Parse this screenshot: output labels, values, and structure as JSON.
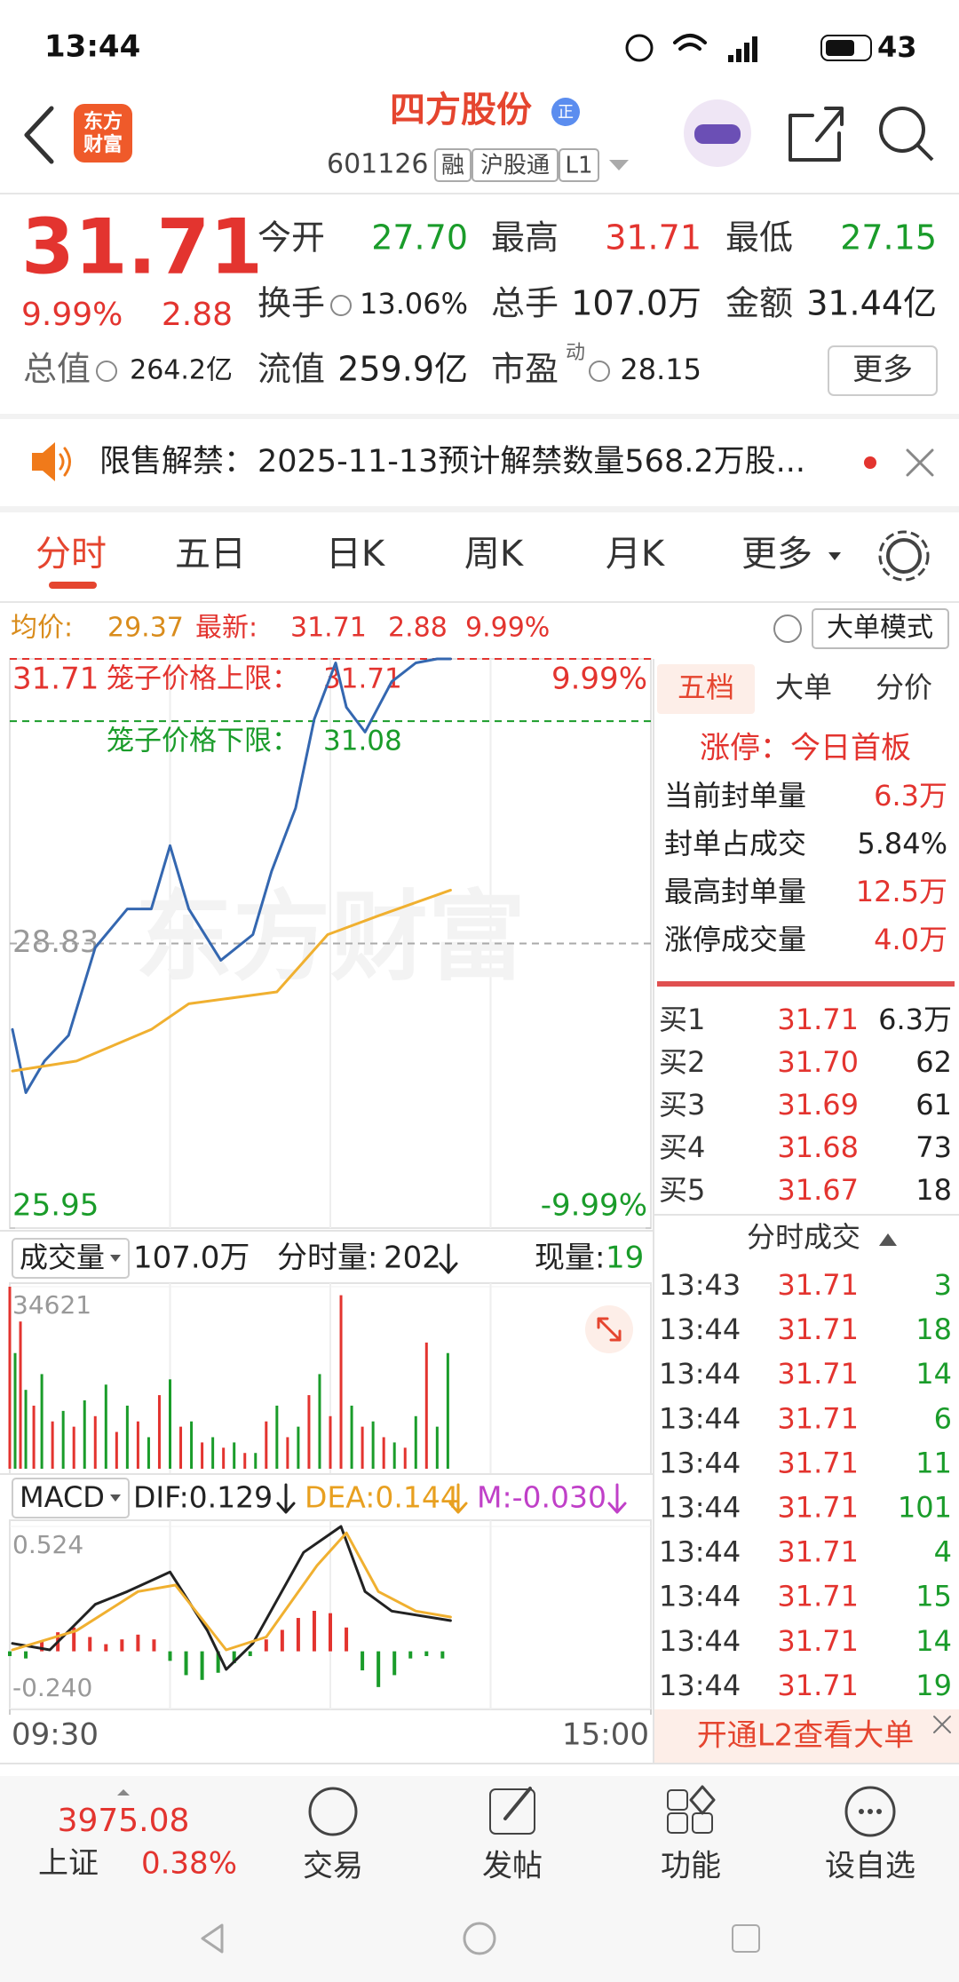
{
  "status_bar": {
    "time": "13:44",
    "battery": "43"
  },
  "header": {
    "logo": [
      "东方",
      "财富"
    ],
    "title": "四方股份",
    "badge": "正",
    "code": "601126",
    "tags": [
      "融",
      "沪股通",
      "L1"
    ]
  },
  "quote": {
    "price": "31.71",
    "change_pct": "9.99%",
    "change": "2.88",
    "stats": [
      {
        "label": "今开",
        "value": "27.70",
        "color": "#1a9c2a"
      },
      {
        "label": "最高",
        "value": "31.71",
        "color": "#e3342f"
      },
      {
        "label": "最低",
        "value": "27.15",
        "color": "#1a9c2a"
      },
      {
        "label": "换手",
        "value": "13.06%",
        "color": "#222222"
      },
      {
        "label": "总手",
        "value": "107.0万",
        "color": "#222222"
      },
      {
        "label": "金额",
        "value": "31.44亿",
        "color": "#222222"
      },
      {
        "label": "总值",
        "value": "264.2亿",
        "color": "#222222"
      },
      {
        "label": "流值",
        "value": "259.9亿",
        "color": "#222222"
      },
      {
        "label": "市盈",
        "sup": "动",
        "value": "28.15",
        "color": "#222222"
      }
    ],
    "more": "更多"
  },
  "notice": {
    "label": "限售解禁：",
    "text": "2025-11-13预计解禁数量568.2万股..."
  },
  "tabs": [
    "分时",
    "五日",
    "日K",
    "周K",
    "月K",
    "更多"
  ],
  "info_line": {
    "avg_label": "均价:",
    "avg": "29.37",
    "last_label": "最新:",
    "last": "31.71",
    "change": "2.88",
    "pct": "9.99%",
    "mode": "大单模式"
  },
  "chart_data": [
    {
      "type": "line",
      "watermark": "东方财富",
      "xlim": [
        0,
        240
      ],
      "ylim": [
        25.95,
        31.71
      ],
      "yticks": [
        25.95,
        28.83,
        31.71
      ],
      "ytick_colors": [
        "#1a9c2a",
        "#999999",
        "#e3342f"
      ],
      "y2lim": [
        -9.99,
        9.99
      ],
      "y2ticks": [
        {
          "value": -9.99,
          "label": "-9.99%"
        },
        {
          "value": 9.99,
          "label": "9.99%"
        }
      ],
      "limit_lines": [
        {
          "label": "笼子价格上限：",
          "value": 31.71,
          "color": "#e3342f"
        },
        {
          "label": "笼子价格下限：",
          "value": 31.08,
          "color": "#1a9c2a"
        }
      ],
      "series": [
        {
          "color": "#3467b0",
          "x": [
            1,
            6,
            13,
            22,
            32,
            44,
            53,
            60,
            67,
            79,
            91,
            98,
            107,
            114,
            122,
            126,
            133,
            143,
            152,
            160,
            165
          ],
          "values": [
            27.96,
            27.32,
            27.64,
            27.9,
            28.79,
            29.18,
            29.18,
            29.82,
            29.18,
            28.66,
            28.92,
            29.56,
            30.2,
            31.1,
            31.67,
            31.22,
            30.97,
            31.48,
            31.67,
            31.71,
            31.71
          ]
        },
        {
          "color": "#f0b030",
          "x": [
            1,
            25,
            53,
            67,
            100,
            119,
            138,
            165
          ],
          "values": [
            27.54,
            27.64,
            27.96,
            28.22,
            28.34,
            28.92,
            29.11,
            29.37
          ]
        }
      ]
    },
    {
      "type": "bar",
      "selector": "成交量",
      "total": "107.0万",
      "minute_label": "分时量:",
      "minute": "202",
      "now_label": "现量:",
      "now": "19",
      "xlim": [
        0,
        240
      ],
      "ylim": [
        0,
        34621
      ],
      "yticks": [
        34621
      ],
      "series": [
        {
          "color": "#e3342f",
          "x": [
            0,
            4,
            9,
            16,
            24,
            32,
            40,
            48,
            56,
            64,
            72,
            80,
            88,
            96,
            104,
            112,
            120,
            124,
            132,
            140,
            148,
            156
          ],
          "values": [
            34621,
            28000,
            12000,
            9000,
            8000,
            10000,
            7000,
            9000,
            14000,
            8000,
            5000,
            4000,
            3000,
            9000,
            6000,
            14000,
            10000,
            33000,
            8000,
            6000,
            4000,
            24000
          ]
        },
        {
          "color": "#1a9c2a",
          "x": [
            2,
            6,
            12,
            20,
            28,
            36,
            44,
            52,
            60,
            68,
            76,
            84,
            92,
            100,
            108,
            116,
            128,
            136,
            144,
            152,
            160,
            164
          ],
          "values": [
            22000,
            15000,
            18000,
            11000,
            13000,
            16000,
            12000,
            6000,
            17000,
            9000,
            6000,
            5000,
            3000,
            12000,
            8000,
            18000,
            12000,
            9000,
            5000,
            10000,
            8000,
            22000
          ]
        }
      ]
    },
    {
      "type": "macd",
      "selector": "MACD",
      "dif": "DIF:0.129",
      "dea": "DEA:0.144",
      "m": "M:-0.030",
      "xlim": [
        0,
        240
      ],
      "xticks": [
        {
          "value": 0,
          "label": "09:30"
        },
        {
          "value": 240,
          "label": "15:00"
        }
      ],
      "ylim": [
        -0.24,
        0.524
      ],
      "yticks": [
        {
          "value": -0.24,
          "label": "-0.240"
        },
        0.524
      ],
      "up_color": "#e3342f",
      "down_color": "#1a9c2a",
      "histogram": {
        "x": [
          0,
          6,
          12,
          18,
          24,
          30,
          36,
          42,
          48,
          54,
          60,
          66,
          72,
          78,
          84,
          90,
          96,
          102,
          108,
          114,
          120,
          126,
          132,
          138,
          144,
          150,
          156,
          162
        ],
        "values": [
          -0.02,
          -0.03,
          0.04,
          0.08,
          0.1,
          0.06,
          0.03,
          0.05,
          0.07,
          0.05,
          -0.04,
          -0.1,
          -0.12,
          -0.09,
          -0.05,
          -0.02,
          0.05,
          0.09,
          0.14,
          0.17,
          0.16,
          0.1,
          -0.08,
          -0.15,
          -0.1,
          -0.03,
          -0.02,
          -0.03
        ]
      },
      "series": [
        {
          "color": "#222222",
          "x": [
            1,
            15,
            32,
            44,
            60,
            74,
            81,
            91,
            110,
            124,
            133,
            143,
            165
          ],
          "values": [
            0.033,
            0.006,
            0.197,
            0.251,
            0.333,
            0.087,
            -0.076,
            0.033,
            0.415,
            0.524,
            0.251,
            0.169,
            0.129
          ]
        },
        {
          "color": "#f0b030",
          "x": [
            1,
            25,
            48,
            62,
            81,
            96,
            115,
            126,
            138,
            152,
            165
          ],
          "values": [
            0.006,
            0.087,
            0.251,
            0.278,
            0.006,
            0.06,
            0.36,
            0.497,
            0.251,
            0.169,
            0.144
          ]
        }
      ]
    }
  ],
  "right_panel": {
    "tabs": [
      "五档",
      "大单",
      "分价"
    ],
    "limit_status": "涨停：今日首板",
    "seal_stats": [
      {
        "label": "当前封单量",
        "value": "6.3万",
        "color": "#e3342f"
      },
      {
        "label": "封单占成交",
        "value": "5.84%",
        "color": "#222222"
      },
      {
        "label": "最高封单量",
        "value": "12.5万",
        "color": "#e3342f"
      },
      {
        "label": "涨停成交量",
        "value": "4.0万",
        "color": "#e3342f"
      }
    ],
    "bids": [
      [
        "买1",
        "31.71",
        "6.3万"
      ],
      [
        "买2",
        "31.70",
        "62"
      ],
      [
        "买3",
        "31.69",
        "61"
      ],
      [
        "买4",
        "31.68",
        "73"
      ],
      [
        "买5",
        "31.67",
        "18"
      ]
    ],
    "trades_title": "分时成交",
    "trade_volume_color": "#1a9c2a",
    "trades": [
      [
        "13:43",
        "31.71",
        "3"
      ],
      [
        "13:44",
        "31.71",
        "18"
      ],
      [
        "13:44",
        "31.71",
        "14"
      ],
      [
        "13:44",
        "31.71",
        "6"
      ],
      [
        "13:44",
        "31.71",
        "11"
      ],
      [
        "13:44",
        "31.71",
        "101"
      ],
      [
        "13:44",
        "31.71",
        "4"
      ],
      [
        "13:44",
        "31.71",
        "15"
      ],
      [
        "13:44",
        "31.71",
        "14"
      ],
      [
        "13:44",
        "31.71",
        "19"
      ]
    ],
    "l2": "开通L2查看大单"
  },
  "bottom_bar": {
    "index": {
      "value": "3975.08",
      "name": "上证",
      "pct": "0.38%"
    },
    "nav": [
      "交易",
      "发帖",
      "功能",
      "设自选"
    ]
  }
}
